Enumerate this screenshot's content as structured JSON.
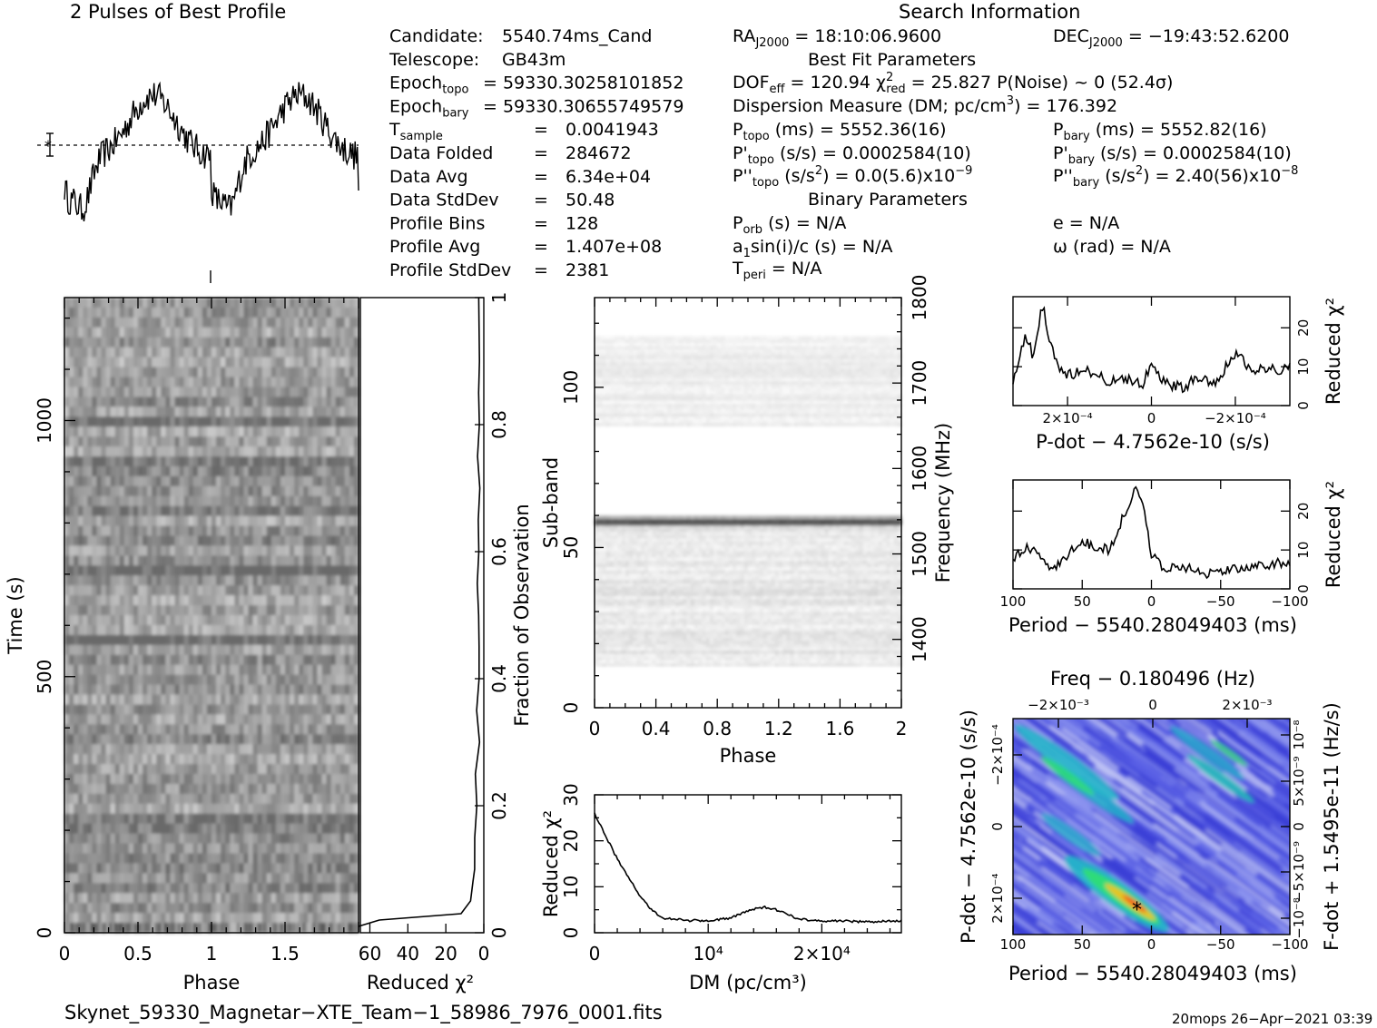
{
  "profile": {
    "title": "2 Pulses of Best Profile"
  },
  "info": {
    "search_title": "Search Information",
    "col1": [
      [
        "Candidate:",
        "5540.74ms_Cand"
      ],
      [
        "Telescope:",
        "GB43m"
      ],
      [
        "Epoch_topo",
        "= 59330.30258101852"
      ],
      [
        "Epoch_bary",
        "= 59330.30655749579"
      ],
      [
        "T_sample",
        "=",
        "0.0041943"
      ],
      [
        "Data Folded",
        "=",
        "284672"
      ],
      [
        "Data Avg",
        "=",
        "6.34e+04"
      ],
      [
        "Data StdDev",
        "=",
        "50.48"
      ],
      [
        "Profile Bins",
        "=",
        "128"
      ],
      [
        "Profile Avg",
        "=",
        "1.407e+08"
      ],
      [
        "Profile StdDev",
        "=",
        "2381"
      ]
    ],
    "ra": "RA_J2000 = 18:10:06.9600",
    "dec": "DEC_J2000 = −19:43:52.6200",
    "best_fit_title": "Best Fit Parameters",
    "dof": "DOF_eff = 120.94  χ²_red = 25.827  P(Noise) ~ 0   (52.4σ)",
    "dm_line": "Dispersion Measure (DM; pc/cm³) = 176.392",
    "p_topo": "P_topo (ms) =  5552.36(16)",
    "p_bary": "P_bary (ms) =  5552.82(16)",
    "pd_topo": "P'_topo (s/s) =  0.0002584(10)",
    "pd_bary": "P'_bary (s/s) =  0.0002584(10)",
    "pdd_topo": "P''_topo (s/s²) = 0.0(5.6)x10⁻⁹",
    "pdd_bary": "P''_bary (s/s²) =  2.40(56)x10⁻⁸",
    "binary_title": "Binary Parameters",
    "porb": "P_orb (s) = N/A",
    "ecc": "e = N/A",
    "a1": "a₁sin(i)/c (s) = N/A",
    "omega": "ω (rad) = N/A",
    "tperi": "T_peri = N/A"
  },
  "waterfall": {
    "xlabel": "Phase",
    "ylabel": "Time (s)",
    "xticks": [
      "0",
      "0.5",
      "1",
      "1.5"
    ],
    "yticks": [
      "0",
      "500",
      "1000"
    ]
  },
  "chi_vs_time": {
    "xlabel": "Reduced χ²",
    "xticks": [
      "60",
      "40",
      "20",
      "0"
    ],
    "right_label": "Fraction of Observation",
    "rticks": [
      "0",
      "0.2",
      "0.4",
      "0.6",
      "0.8",
      "1"
    ]
  },
  "subband": {
    "xlabel": "Phase",
    "ylabel": "Sub-band",
    "right_label": "Frequency (MHz)",
    "xticks": [
      "0",
      "0.4",
      "0.8",
      "1.2",
      "1.6",
      "2"
    ],
    "yticks": [
      "0",
      "50",
      "100"
    ],
    "rticks": [
      "1400",
      "1500",
      "1600",
      "1700",
      "1800"
    ]
  },
  "dm_plot": {
    "xlabel": "DM (pc/cm³)",
    "ylabel": "Reduced χ²",
    "xticks": [
      "0",
      "10⁴",
      "2×10⁴"
    ],
    "yticks": [
      "0",
      "10",
      "20",
      "30"
    ]
  },
  "pdot_plot": {
    "xlabel": "P-dot − 4.7562e-10 (s/s)",
    "ylabel": "Reduced χ²",
    "xticks": [
      "2×10⁻⁴",
      "0",
      "−2×10⁻⁴"
    ],
    "yticks": [
      "0",
      "10",
      "20"
    ]
  },
  "period_plot": {
    "xlabel": "Period − 5540.28049403 (ms)",
    "ylabel": "Reduced χ²",
    "xticks": [
      "100",
      "50",
      "0",
      "−50",
      "−100"
    ],
    "yticks": [
      "0",
      "10",
      "20"
    ]
  },
  "ppdot": {
    "top_label": "Freq − 0.180496 (Hz)",
    "top_ticks": [
      "−2×10⁻³",
      "0",
      "2×10⁻³"
    ],
    "xlabel": "Period − 5540.28049403 (ms)",
    "xticks": [
      "100",
      "50",
      "0",
      "−50",
      "−100"
    ],
    "ylabel": "P-dot − 4.7562e-10 (s/s)",
    "yticks": [
      "2×10⁻⁴",
      "0",
      "−2×10⁻⁴"
    ],
    "right_label": "F-dot + 1.5495e-11 (Hz/s)",
    "rticks": [
      "−10⁻⁸",
      "−5×10⁻⁹",
      "0",
      "5×10⁻⁹",
      "10⁻⁸"
    ]
  },
  "footer": {
    "filename": "Skynet_59330_Magnetar−XTE_Team−1_58986_7976_0001.fits",
    "stamp": "20mops 26−Apr−2021 03:39"
  },
  "chart_data": [
    {
      "type": "line",
      "title": "2 Pulses of Best Profile",
      "xlabel": "",
      "ylabel": "",
      "xlim": [
        0,
        2
      ]
    },
    {
      "type": "heatmap",
      "xlabel": "Phase",
      "ylabel": "Time (s)",
      "xlim": [
        0,
        2
      ],
      "ylim": [
        0,
        1240
      ]
    },
    {
      "type": "line",
      "xlabel": "Reduced χ²",
      "ylabel": "Fraction of Observation",
      "xlim": [
        65,
        0
      ],
      "ylim": [
        0,
        1
      ],
      "x": [
        66,
        55,
        12,
        7,
        6,
        5,
        4.5,
        4,
        3.5,
        3,
        3,
        2.5,
        2.5,
        3,
        2.5,
        3,
        2.5,
        3,
        2.5,
        3,
        2.5,
        2.5,
        3
      ],
      "y": [
        0.01,
        0.02,
        0.03,
        0.05,
        0.08,
        0.1,
        0.15,
        0.2,
        0.25,
        0.3,
        0.35,
        0.4,
        0.45,
        0.5,
        0.55,
        0.6,
        0.65,
        0.7,
        0.75,
        0.8,
        0.85,
        0.9,
        1.0
      ]
    },
    {
      "type": "heatmap",
      "xlabel": "Phase",
      "ylabel": "Sub-band",
      "xlim": [
        0,
        2
      ],
      "ylim": [
        0,
        128
      ],
      "y2label": "Frequency (MHz)",
      "y2lim": [
        1320,
        1800
      ]
    },
    {
      "type": "line",
      "xlabel": "DM (pc/cm³)",
      "ylabel": "Reduced χ²",
      "xlim": [
        0,
        27000
      ],
      "ylim": [
        0,
        30
      ],
      "x": [
        0,
        1000,
        2000,
        3000,
        4000,
        5000,
        6000,
        8000,
        10000,
        12000,
        13000,
        14000,
        15000,
        16000,
        17000,
        18000,
        20000,
        22000,
        24000,
        26000,
        27000
      ],
      "y": [
        26,
        21,
        16,
        12,
        8,
        5,
        3.2,
        2.7,
        2.6,
        3.2,
        4.2,
        5.2,
        5.5,
        5.0,
        4.0,
        3.0,
        2.6,
        2.5,
        2.4,
        2.5,
        2.5
      ]
    },
    {
      "type": "line",
      "xlabel": "P-dot − 4.7562e-10 (s/s)",
      "ylabel": "Reduced χ²",
      "xlim": [
        0.00033,
        -0.00033
      ],
      "ylim": [
        0,
        28
      ],
      "x": [
        0.00033,
        0.0003,
        0.00028,
        0.00026,
        0.00024,
        0.00022,
        0.0002,
        0.00015,
        0.0001,
        5e-05,
        2e-05,
        0,
        -3e-05,
        -8e-05,
        -0.0001,
        -0.00015,
        -0.0002,
        -0.00025,
        -0.0003,
        -0.00033
      ],
      "y": [
        7,
        18,
        12,
        26,
        15,
        10,
        8,
        9,
        6,
        7,
        5,
        12,
        6,
        4,
        7,
        6,
        13,
        9,
        9,
        10
      ]
    },
    {
      "type": "line",
      "xlabel": "Period − 5540.28049403 (ms)",
      "ylabel": "Reduced χ²",
      "xlim": [
        100,
        -100
      ],
      "ylim": [
        0,
        28
      ],
      "x": [
        100,
        90,
        80,
        70,
        60,
        50,
        40,
        30,
        20,
        15,
        10,
        5,
        0,
        -10,
        -20,
        -40,
        -60,
        -80,
        -100
      ],
      "y": [
        8,
        11,
        8,
        5,
        9,
        12,
        11,
        10,
        19,
        23,
        26,
        19,
        9,
        5,
        6,
        4,
        5,
        6,
        7
      ]
    },
    {
      "type": "heatmap",
      "xlabel": "Period − 5540.28049403 (ms)",
      "ylabel": "P-dot − 4.7562e-10 (s/s)",
      "xlim": [
        100,
        -100
      ],
      "ylim": [
        0.0003,
        -0.0003
      ]
    }
  ]
}
